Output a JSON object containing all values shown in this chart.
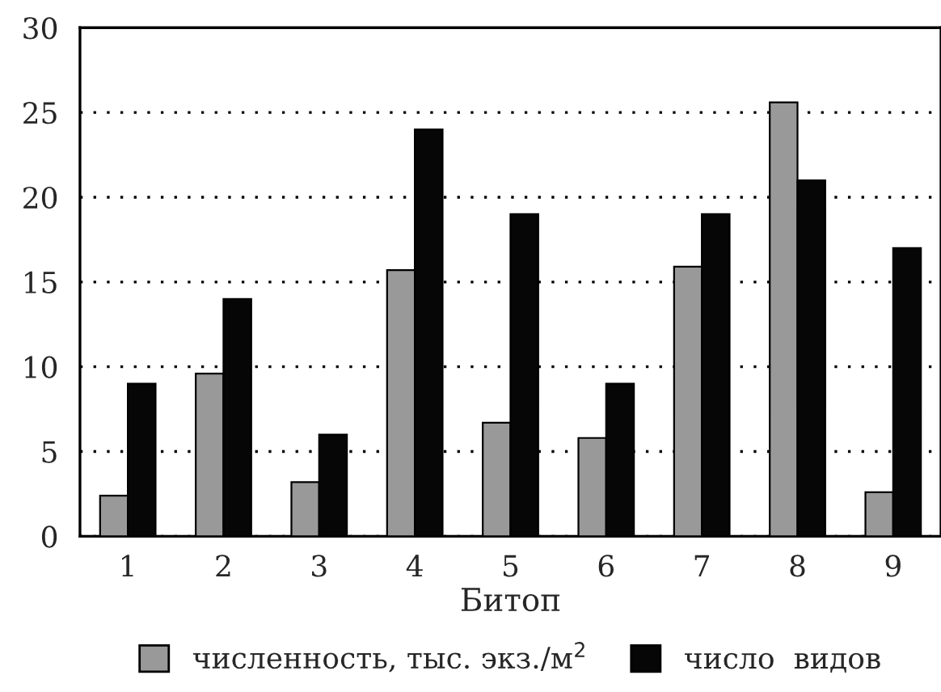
{
  "chart_data": {
    "type": "bar",
    "xlabel": "Битоп",
    "categories": [
      "1",
      "2",
      "3",
      "4",
      "5",
      "6",
      "7",
      "8",
      "9"
    ],
    "series": [
      {
        "name": "численность, тыс. экз./м$^{2}$",
        "color": "#999999",
        "values": [
          2.4,
          9.6,
          3.2,
          15.7,
          6.7,
          5.8,
          15.9,
          25.6,
          2.6
        ]
      },
      {
        "name": "число  видов",
        "color": "#060606",
        "values": [
          9,
          14,
          6,
          24,
          19,
          9,
          19,
          21,
          17
        ]
      }
    ],
    "ylim": [
      0,
      30
    ],
    "yticks": [
      0,
      5,
      10,
      15,
      20,
      25,
      30
    ],
    "grid": "y",
    "legend": "bottom"
  }
}
